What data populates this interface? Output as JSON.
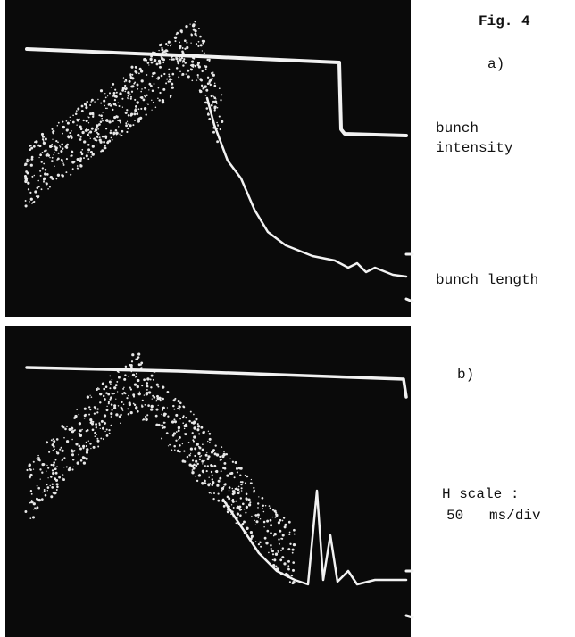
{
  "figure": {
    "label": "Fig. 4"
  },
  "panels": [
    {
      "label": "a)",
      "annotations": [
        {
          "lines": [
            "bunch",
            "intensity"
          ]
        },
        {
          "lines": [
            "bunch length"
          ]
        }
      ]
    },
    {
      "label": "b)",
      "annotations": [
        {
          "lines": [
            "H scale :",
            "50   ms/div"
          ]
        }
      ]
    }
  ]
}
